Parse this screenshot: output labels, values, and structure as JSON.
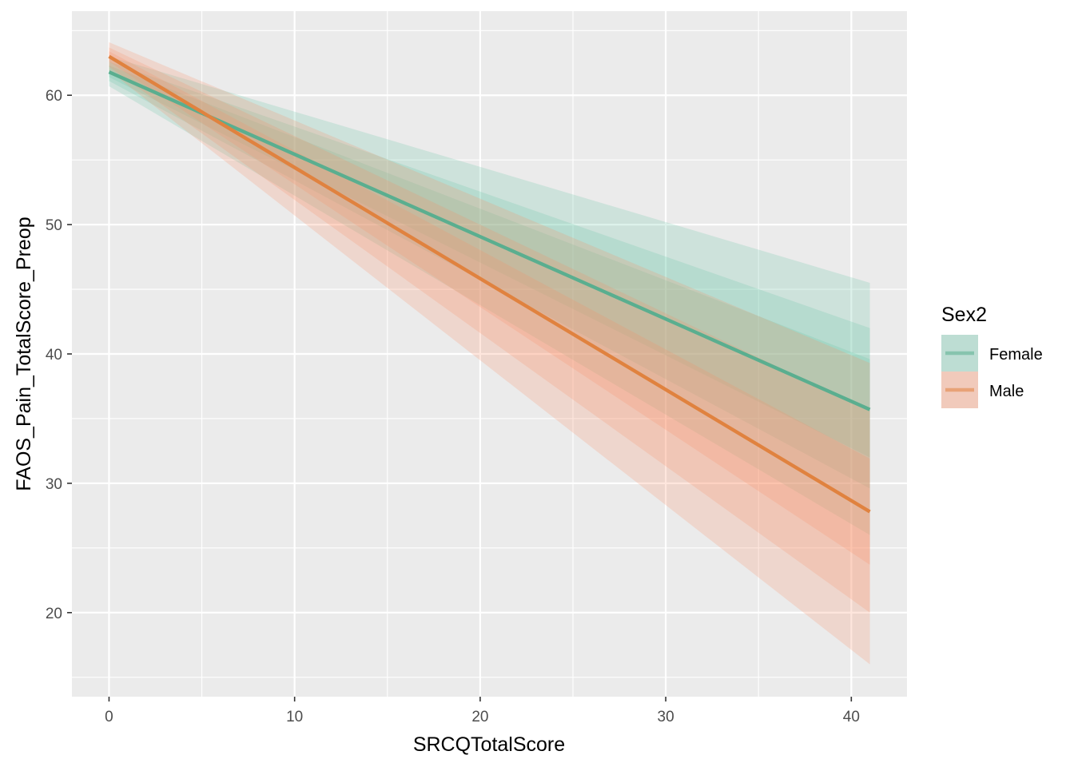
{
  "chart_data": {
    "type": "line",
    "xlabel": "SRCQTotalScore",
    "ylabel": "FAOS_Pain_TotalScore_Preop",
    "xlim": [
      -2,
      43
    ],
    "ylim": [
      13.5,
      66.5
    ],
    "x_ticks": [
      0,
      10,
      20,
      30,
      40
    ],
    "y_ticks": [
      20,
      30,
      40,
      50,
      60
    ],
    "x_tick_labels": [
      "0",
      "10",
      "20",
      "30",
      "40"
    ],
    "y_tick_labels": [
      "20",
      "30",
      "40",
      "50",
      "60"
    ],
    "grid": true,
    "legend": {
      "title": "Sex2",
      "position": "right"
    },
    "series": [
      {
        "name": "Female",
        "color": "#66c2a5",
        "line_color": "#5aae8f",
        "x": [
          0,
          41
        ],
        "y": [
          61.8,
          35.7
        ],
        "bands": [
          {
            "level": "inner",
            "upper": [
              62.3,
              39.6
            ],
            "lower": [
              61.4,
              32.0
            ]
          },
          {
            "level": "middle",
            "upper": [
              62.6,
              42.0
            ],
            "lower": [
              61.1,
              29.6
            ]
          },
          {
            "level": "outer",
            "upper": [
              63.0,
              45.5
            ],
            "lower": [
              60.7,
              26.0
            ]
          }
        ]
      },
      {
        "name": "Male",
        "color": "#fc8d62",
        "line_color": "#e0823f",
        "x": [
          0,
          41
        ],
        "y": [
          63.0,
          27.8
        ],
        "bands": [
          {
            "level": "inner",
            "upper": [
              63.4,
              31.9
            ],
            "lower": [
              62.6,
              23.7
            ]
          },
          {
            "level": "middle",
            "upper": [
              63.7,
              35.6
            ],
            "lower": [
              62.2,
              20.0
            ]
          },
          {
            "level": "outer",
            "upper": [
              64.1,
              39.3
            ],
            "lower": [
              61.9,
              16.0
            ]
          }
        ]
      }
    ]
  }
}
